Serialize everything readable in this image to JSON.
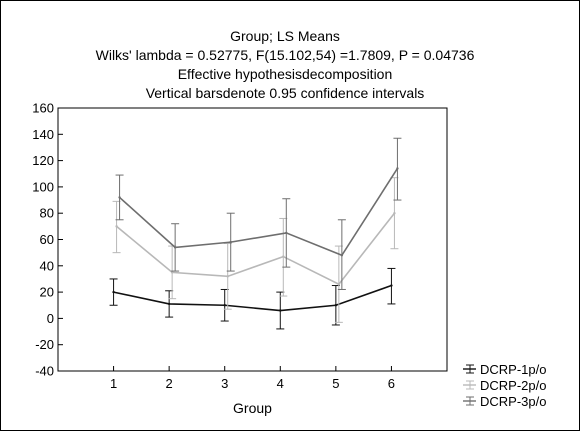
{
  "chart_data": {
    "type": "line",
    "title_lines": [
      "Group; LS Means",
      "Wilks' lambda = 0.52775, F(15.102,54) =1.7809, P = 0.04736",
      "Effective hypothesisdecomposition",
      "Vertical barsdenote 0.95 confidence intervals"
    ],
    "xlabel": "Group",
    "ylabel": "",
    "x": [
      1,
      2,
      3,
      4,
      5,
      6
    ],
    "xlim": [
      0,
      7
    ],
    "ylim": [
      -40,
      160
    ],
    "yticks": [
      -40,
      -20,
      0,
      20,
      40,
      60,
      80,
      100,
      120,
      140,
      160
    ],
    "grid": false,
    "legend_position": "bottom-right",
    "series": [
      {
        "name": "DCRP-1p/o",
        "color": "#111111",
        "values": [
          20,
          11,
          10,
          6,
          10,
          25
        ],
        "lower": [
          10,
          1,
          -2,
          -8,
          -5,
          11
        ],
        "upper": [
          30,
          21,
          22,
          20,
          25,
          38
        ]
      },
      {
        "name": "DCRP-2p/o",
        "color": "#b8b8b8",
        "values": [
          70,
          35,
          32,
          47,
          26,
          80
        ],
        "lower": [
          50,
          15,
          7,
          17,
          -3,
          53
        ],
        "upper": [
          89,
          55,
          57,
          76,
          55,
          107
        ]
      },
      {
        "name": "DCRP-3p/o",
        "color": "#6e6e6e",
        "values": [
          92,
          54,
          58,
          65,
          48,
          114
        ],
        "lower": [
          75,
          36,
          36,
          39,
          22,
          90
        ],
        "upper": [
          109,
          72,
          80,
          91,
          75,
          137
        ]
      }
    ]
  }
}
